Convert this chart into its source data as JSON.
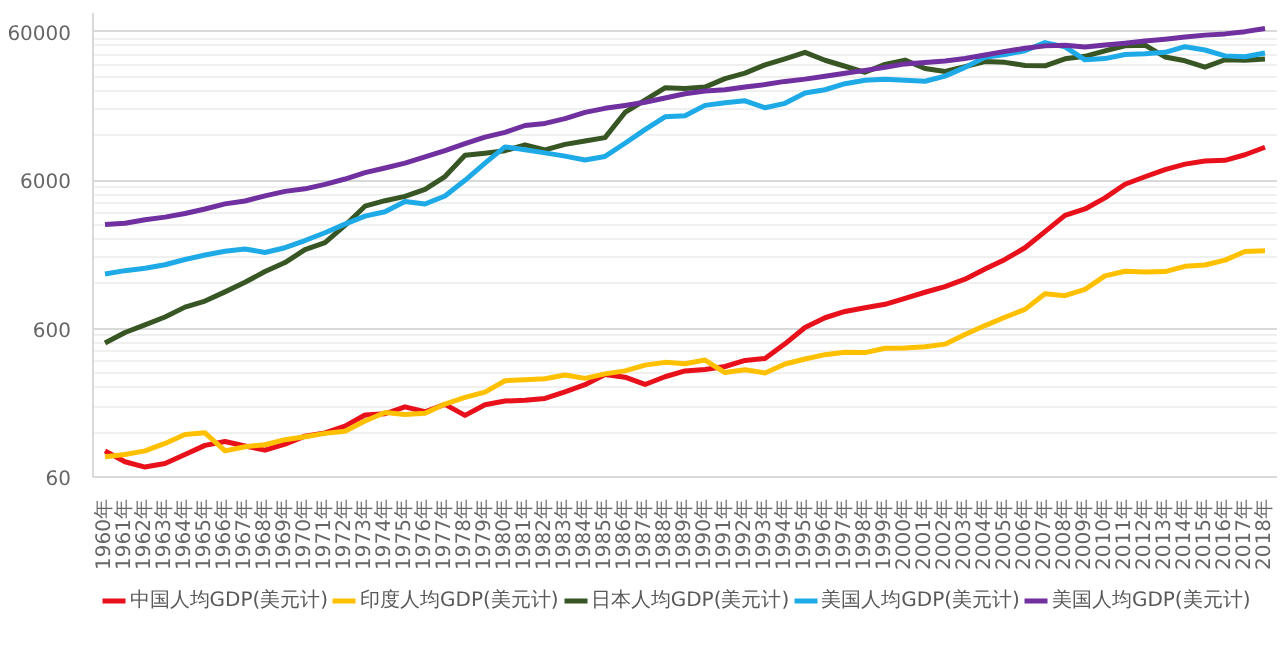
{
  "chart_data": {
    "type": "line",
    "log": "y",
    "grid": "y",
    "legend": "bottom",
    "marker": "none",
    "line_style": "solid",
    "categories": [
      "1960年",
      "1961年",
      "1962年",
      "1963年",
      "1964年",
      "1965年",
      "1966年",
      "1967年",
      "1968年",
      "1969年",
      "1970年",
      "1971年",
      "1972年",
      "1973年",
      "1974年",
      "1975年",
      "1976年",
      "1977年",
      "1978年",
      "1979年",
      "1980年",
      "1981年",
      "1982年",
      "1983年",
      "1984年",
      "1985年",
      "1986年",
      "1987年",
      "1988年",
      "1989年",
      "1990年",
      "1991年",
      "1992年",
      "1993年",
      "1994年",
      "1995年",
      "1996年",
      "1997年",
      "1998年",
      "1999年",
      "2000年",
      "2001年",
      "2002年",
      "2003年",
      "2004年",
      "2005年",
      "2006年",
      "2007年",
      "2008年",
      "2009年",
      "2010年",
      "2011年",
      "2012年",
      "2013年",
      "2014年",
      "2015年",
      "2016年",
      "2017年",
      "2018年"
    ],
    "ylim": [
      60,
      80000
    ],
    "yticks": [
      60,
      600,
      6000,
      60000
    ],
    "series": [
      {
        "name": "中国人均GDP(美元计)",
        "color": "#e8111b",
        "values": [
          90,
          76,
          70,
          74,
          85,
          98,
          104,
          97,
          91,
          100,
          113,
          119,
          132,
          157,
          160,
          178,
          165,
          185,
          156,
          184,
          195,
          197,
          203,
          225,
          251,
          294,
          282,
          252,
          284,
          311,
          318,
          333,
          366,
          377,
          473,
          610,
          709,
          782,
          829,
          873,
          959,
          1053,
          1149,
          1289,
          1509,
          1753,
          2099,
          2694,
          3468,
          3832,
          4550,
          5618,
          6317,
          7051,
          7679,
          8067,
          8148,
          8879,
          9977
        ]
      },
      {
        "name": "印度人均GDP(美元计)",
        "color": "#ffc000",
        "values": [
          82,
          85,
          90,
          101,
          116,
          119,
          90,
          96,
          99,
          107,
          112,
          118,
          122,
          143,
          163,
          158,
          161,
          186,
          206,
          224,
          267,
          271,
          275,
          292,
          277,
          297,
          311,
          340,
          355,
          347,
          368,
          303,
          317,
          301,
          346,
          374,
          400,
          415,
          413,
          442,
          443,
          452,
          471,
          547,
          628,
          715,
          807,
          1028,
          999,
          1102,
          1358,
          1458,
          1444,
          1450,
          1574,
          1606,
          1733,
          1981,
          2005
        ]
      },
      {
        "name": "日本人均GDP(美元计)",
        "color": "#375623",
        "values": [
          479,
          564,
          634,
          717,
          836,
          919,
          1059,
          1229,
          1451,
          1669,
          2038,
          2272,
          2967,
          3998,
          4354,
          4659,
          5198,
          6335,
          8821,
          9105,
          9463,
          10361,
          9578,
          10425,
          10984,
          11585,
          17112,
          20745,
          25052,
          24813,
          25359,
          28925,
          31465,
          35766,
          39269,
          43440,
          38437,
          35022,
          31903,
          36027,
          38532,
          33846,
          32289,
          34808,
          37689,
          37218,
          35434,
          35275,
          39339,
          40855,
          44508,
          48168,
          48603,
          40454,
          38109,
          34524,
          38761,
          38387,
          39159
        ]
      },
      {
        "name": "美国人均GDP(美元计)",
        "color": "#1eaae7",
        "values": [
          1398,
          1472,
          1526,
          1613,
          1749,
          1875,
          1987,
          2059,
          1952,
          2101,
          2348,
          2650,
          3030,
          3426,
          3666,
          4300,
          4138,
          4682,
          5977,
          7804,
          10032,
          9599,
          9146,
          8692,
          8179,
          8652,
          10611,
          13119,
          15987,
          16240,
          19095,
          19901,
          20487,
          18389,
          19709,
          23123,
          24332,
          26734,
          28214,
          28669,
          28150,
          27744,
          30057,
          34420,
          40290,
          42030,
          44599,
          50567,
          47287,
          38713,
          39436,
          42039,
          42463,
          43449,
          47440,
          45071,
          41146,
          40572,
          43043
        ]
      },
      {
        "name": "美国人均GDP(美元计)",
        "color": "#7030a0",
        "values": [
          3007,
          3067,
          3244,
          3375,
          3574,
          3828,
          4146,
          4336,
          4696,
          5032,
          5234,
          5609,
          6094,
          6726,
          7226,
          7801,
          8592,
          9453,
          10565,
          11674,
          12575,
          13976,
          14434,
          15544,
          17121,
          18237,
          19071,
          20039,
          21417,
          22857,
          23889,
          24342,
          25419,
          26387,
          27695,
          28691,
          29968,
          31459,
          32854,
          34515,
          36330,
          37134,
          37998,
          39490,
          41725,
          44123,
          46302,
          48050,
          48570,
          47195,
          48651,
          50066,
          51784,
          53291,
          55124,
          56763,
          57867,
          59915,
          62997
        ]
      }
    ]
  }
}
